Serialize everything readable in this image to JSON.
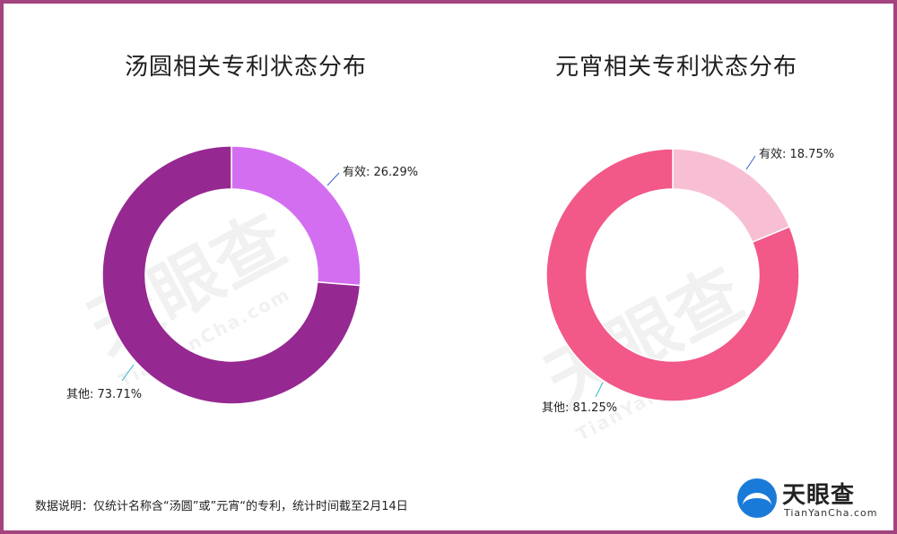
{
  "chart_data": [
    {
      "type": "pie",
      "title": "汤圆相关专利状态分布",
      "donut": true,
      "slices": [
        {
          "label": "有效",
          "value": 26.29,
          "display": "26.29%",
          "color": "#d46ef0"
        },
        {
          "label": "其他",
          "value": 73.71,
          "display": "73.71%",
          "color": "#962891"
        }
      ],
      "leader_color": "#3a5fcd"
    },
    {
      "type": "pie",
      "title": "元宵相关专利状态分布",
      "donut": true,
      "slices": [
        {
          "label": "有效",
          "value": 18.75,
          "display": "18.75%",
          "color": "#f8bfd4"
        },
        {
          "label": "其他",
          "value": 81.25,
          "display": "81.25%",
          "color": "#f25888"
        }
      ],
      "leader_color": "#3a5fcd"
    }
  ],
  "footnote": "数据说明：仅统计名称含“汤圆”或”元宵“的专利，统计时间截至2月14日",
  "watermark": {
    "main": "天眼查",
    "sub": "TianYanCha.com"
  },
  "logo": {
    "main": "天眼查",
    "sub": "TianYanCha.com",
    "color": "#1a7ad8"
  },
  "frame_color": "#a4447e"
}
